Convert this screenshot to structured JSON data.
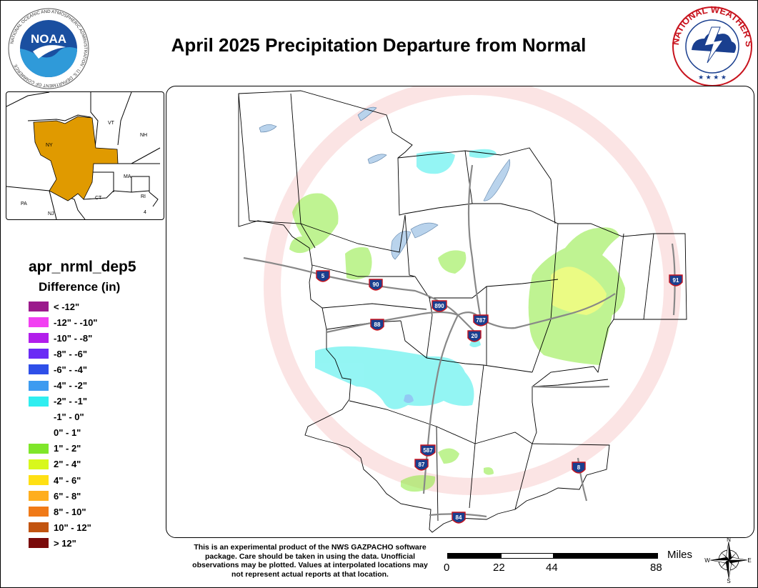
{
  "header": {
    "title": "April 2025 Precipitation Departure from Normal"
  },
  "logos": {
    "noaa": {
      "ring_text": "NATIONAL OCEANIC AND ATMOSPHERIC ADMINISTRATION · U.S. DEPARTMENT OF COMMERCE",
      "center_text": "NOAA"
    },
    "nws": {
      "ring_text": "NATIONAL WEATHER SERVICE"
    }
  },
  "inset_map": {
    "labels": {
      "vt": "VT",
      "nh": "NH",
      "ny": "NY",
      "ma": "MA",
      "ct": "CT",
      "ri": "RI",
      "pa": "PA",
      "nj": "NJ",
      "num4": "4"
    },
    "highlight_color": "#E09A00"
  },
  "legend": {
    "title": "apr_nrml_dep5",
    "subtitle": "Difference (in)",
    "items": [
      {
        "label": "< -12\"",
        "color": "#9B1A8C"
      },
      {
        "label": "-12\" - -10\"",
        "color": "#F23FF2"
      },
      {
        "label": "-10\" - -8\"",
        "color": "#B21EEB"
      },
      {
        "label": "-8\" - -6\"",
        "color": "#6A2BF5"
      },
      {
        "label": "-6\" - -4\"",
        "color": "#2E4FE8"
      },
      {
        "label": "-4\" - -2\"",
        "color": "#3D9BF0"
      },
      {
        "label": "-2\" - -1\"",
        "color": "#2FEEF0"
      },
      {
        "label": "-1\" - 0\"",
        "color": "#FFFFFF"
      },
      {
        "label": "0\" - 1\"",
        "color": "#FFFFFF"
      },
      {
        "label": "1\" - 2\"",
        "color": "#7FE62A"
      },
      {
        "label": "2\" - 4\"",
        "color": "#D8F81C"
      },
      {
        "label": "4\" - 6\"",
        "color": "#FFE014"
      },
      {
        "label": "6\" - 8\"",
        "color": "#FFAE1E"
      },
      {
        "label": "8\" - 10\"",
        "color": "#F07A18"
      },
      {
        "label": "10\" - 12\"",
        "color": "#C25410"
      },
      {
        "label": "> 12\"",
        "color": "#7A0A0A"
      }
    ]
  },
  "map": {
    "shields": [
      "5",
      "90",
      "88",
      "890",
      "787",
      "20",
      "587",
      "87",
      "84",
      "8",
      "91"
    ],
    "watermark": "NATIONAL WEATHER SERVICE · U.S. DEPARTMENT OF COMMERCE",
    "colors": {
      "cyan": "#3CEDEB",
      "green": "#8CEB3A",
      "yellow": "#DCF820",
      "blue": "#3A9EEB",
      "water": "#B9D3EC"
    }
  },
  "disclaimer": "This is an experimental product of the NWS GAZPACHO software package. Care should be taken in using the data. Unofficial observations may be plotted. Values at interpolated locations may not represent actual reports at that location.",
  "scale": {
    "units": "Miles",
    "ticks": [
      "0",
      "22",
      "44",
      "88"
    ]
  },
  "compass": {
    "n": "N",
    "s": "S",
    "e": "E",
    "w": "W"
  }
}
